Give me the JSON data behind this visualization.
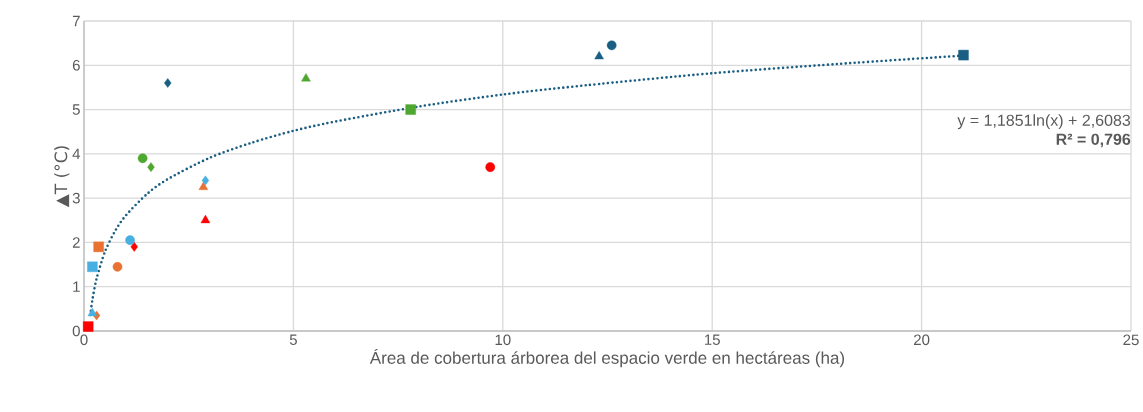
{
  "chart_data": {
    "type": "scatter",
    "xlabel": "Área de cobertura árborea del espacio verde en hectáreas (ha)",
    "ylabel": "▲T (°C)",
    "xlim": [
      0,
      25
    ],
    "xticks": [
      0,
      5,
      10,
      15,
      20,
      25
    ],
    "ylim": [
      0,
      7
    ],
    "yticks": [
      0,
      1,
      2,
      3,
      4,
      5,
      6,
      7
    ],
    "grid": true,
    "annotations": [
      "y = 1,1851ln(x) + 2,6083",
      "R² = 0,796"
    ],
    "series": [
      {
        "color": "#1a5f83",
        "marker": "diamond",
        "x": [
          2.0
        ],
        "values": [
          5.6
        ]
      },
      {
        "color": "#1a5f83",
        "marker": "triangle",
        "x": [
          12.3
        ],
        "values": [
          6.2
        ]
      },
      {
        "color": "#1a5f83",
        "marker": "circle",
        "x": [
          12.6
        ],
        "values": [
          6.45
        ]
      },
      {
        "color": "#1a5f83",
        "marker": "square",
        "x": [
          21.0
        ],
        "values": [
          6.23
        ]
      },
      {
        "color": "#4ea72e",
        "marker": "circle",
        "x": [
          1.4
        ],
        "values": [
          3.9
        ]
      },
      {
        "color": "#4ea72e",
        "marker": "diamond",
        "x": [
          1.6
        ],
        "values": [
          3.7
        ]
      },
      {
        "color": "#4ea72e",
        "marker": "triangle",
        "x": [
          5.3
        ],
        "values": [
          5.7
        ]
      },
      {
        "color": "#4ea72e",
        "marker": "square",
        "x": [
          7.8
        ],
        "values": [
          5.0
        ]
      },
      {
        "color": "#ff0000",
        "marker": "square",
        "x": [
          0.1
        ],
        "values": [
          0.1
        ]
      },
      {
        "color": "#ff0000",
        "marker": "diamond",
        "x": [
          1.2
        ],
        "values": [
          1.9
        ]
      },
      {
        "color": "#ff0000",
        "marker": "triangle",
        "x": [
          2.9
        ],
        "values": [
          2.5
        ]
      },
      {
        "color": "#ff0000",
        "marker": "circle",
        "x": [
          9.7
        ],
        "values": [
          3.7
        ]
      },
      {
        "color": "#e97132",
        "marker": "diamond",
        "x": [
          0.3
        ],
        "values": [
          0.35
        ]
      },
      {
        "color": "#e97132",
        "marker": "square",
        "x": [
          0.35
        ],
        "values": [
          1.9
        ]
      },
      {
        "color": "#e97132",
        "marker": "circle",
        "x": [
          0.8
        ],
        "values": [
          1.45
        ]
      },
      {
        "color": "#e97132",
        "marker": "triangle",
        "x": [
          2.85
        ],
        "values": [
          3.25
        ]
      },
      {
        "color": "#47b0e0",
        "marker": "triangle",
        "x": [
          0.2
        ],
        "values": [
          0.4
        ]
      },
      {
        "color": "#47b0e0",
        "marker": "square",
        "x": [
          0.2
        ],
        "values": [
          1.45
        ]
      },
      {
        "color": "#47b0e0",
        "marker": "circle",
        "x": [
          1.1
        ],
        "values": [
          2.05
        ]
      },
      {
        "color": "#47b0e0",
        "marker": "diamond",
        "x": [
          2.9
        ],
        "values": [
          3.4
        ]
      },
      {
        "type": "line",
        "color": "#1a5f83",
        "marker": "none",
        "line_style": "dotted",
        "x": [
          0.15,
          0.2,
          0.3,
          0.5,
          0.75,
          1,
          1.5,
          2,
          3,
          4,
          5,
          6,
          8,
          10,
          12,
          15,
          18,
          21
        ],
        "values": [
          0.36,
          0.7,
          1.18,
          1.79,
          2.27,
          2.61,
          3.09,
          3.43,
          3.91,
          4.25,
          4.52,
          4.73,
          5.07,
          5.34,
          5.55,
          5.82,
          6.03,
          6.22
        ]
      }
    ]
  }
}
